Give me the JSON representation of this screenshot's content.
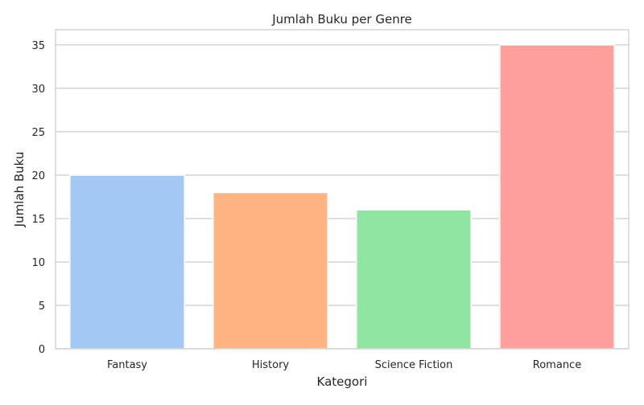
{
  "chart_data": {
    "type": "bar",
    "title": "Jumlah Buku per Genre",
    "xlabel": "Kategori",
    "ylabel": "Jumlah Buku",
    "categories": [
      "Fantasy",
      "History",
      "Science Fiction",
      "Romance"
    ],
    "values": [
      20,
      18,
      16,
      35
    ],
    "colors": [
      "#a1c9f4",
      "#ffb482",
      "#8de5a1",
      "#ff9f9b"
    ],
    "ylim": [
      0,
      36.75
    ],
    "yticks": [
      0,
      5,
      10,
      15,
      20,
      25,
      30,
      35
    ],
    "grid": true,
    "legend": "none"
  }
}
